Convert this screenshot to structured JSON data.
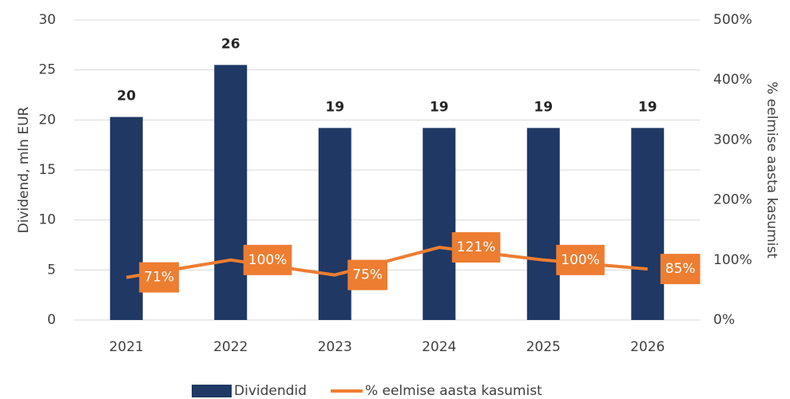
{
  "chart_data": {
    "type": "bar",
    "categories": [
      "2021",
      "2022",
      "2023",
      "2024",
      "2025",
      "2026"
    ],
    "series": [
      {
        "name": "Dividendid",
        "type": "bar",
        "color": "#1f3864",
        "values": [
          20.3,
          25.5,
          19.2,
          19.2,
          19.2,
          19.2
        ],
        "value_labels": [
          "20",
          "26",
          "19",
          "19",
          "19",
          "19"
        ]
      },
      {
        "name": "% eelmise aasta kasumist",
        "type": "line",
        "axis": "y2",
        "color": "#ed7d31",
        "values": [
          71,
          100,
          75,
          121,
          100,
          85
        ],
        "value_labels": [
          "71%",
          "100%",
          "75%",
          "121%",
          "100%",
          "85%"
        ]
      }
    ],
    "ylabel": "Dividend, mln EUR",
    "y2label": "% eelmise aasta kasumist",
    "ylim": [
      0,
      30
    ],
    "yticks": [
      0,
      5,
      10,
      15,
      20,
      25,
      30
    ],
    "y2lim": [
      0,
      500
    ],
    "y2ticks": [
      {
        "value": 0,
        "label": "0%"
      },
      {
        "value": 100,
        "label": "100%"
      },
      {
        "value": 200,
        "label": "200%"
      },
      {
        "value": 300,
        "label": "300%"
      },
      {
        "value": 400,
        "label": "400%"
      },
      {
        "value": 500,
        "label": "500%"
      }
    ],
    "grid": true,
    "legend": "bottom"
  }
}
